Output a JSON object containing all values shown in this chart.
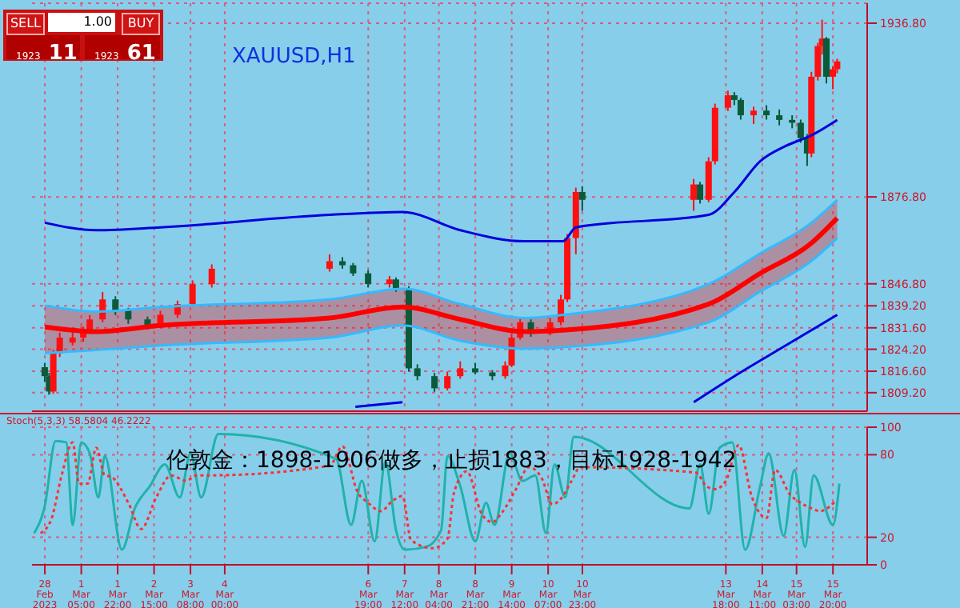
{
  "chart_data": [
    {
      "type": "candlestick",
      "title": "XAUUSD,H1",
      "annotations": [
        "SELL",
        "1.00",
        "BUY",
        "1923",
        "11",
        "1923",
        "61"
      ],
      "x": [
        "2023-02-28T12:00",
        "2023-02-28T14:00",
        "2023-02-28T16:00",
        "2023-02-28T19:00",
        "2023-03-01T01:00",
        "2023-03-01T06:00",
        "2023-03-01T09:00",
        "2023-03-01T15:00",
        "2023-03-01T21:00",
        "2023-03-02T03:00",
        "2023-03-02T12:00",
        "2023-03-02T18:00",
        "2023-03-03T02:00",
        "2023-03-03T09:00",
        "2023-03-03T18:00",
        "2023-03-06T01:00",
        "2023-03-06T07:00",
        "2023-03-06T12:00",
        "2023-03-06T19:00",
        "2023-03-07T05:00",
        "2023-03-07T08:00",
        "2023-03-07T14:00",
        "2023-03-07T18:00",
        "2023-03-08T02:00",
        "2023-03-08T08:00",
        "2023-03-08T14:00",
        "2023-03-08T21:00",
        "2023-03-09T05:00",
        "2023-03-09T11:00",
        "2023-03-09T14:00",
        "2023-03-09T18:00",
        "2023-03-09T23:00",
        "2023-03-10T08:00",
        "2023-03-10T13:00",
        "2023-03-10T16:00",
        "2023-03-10T20:00",
        "2023-03-10T23:00",
        "2023-03-13T03:00",
        "2023-03-13T06:00",
        "2023-03-13T10:00",
        "2023-03-13T13:00",
        "2023-03-13T19:00",
        "2023-03-13T22:00",
        "2023-03-14T01:00",
        "2023-03-14T07:00",
        "2023-03-14T13:00",
        "2023-03-14T19:00",
        "2023-03-15T01:00",
        "2023-03-15T05:00",
        "2023-03-15T08:00",
        "2023-03-15T10:00",
        "2023-03-15T13:00",
        "2023-03-15T15:00",
        "2023-03-15T17:00",
        "2023-03-15T20:00",
        "2023-03-15T22:00"
      ],
      "ohlc": [
        [
          1818,
          1819.5,
          1813,
          1814.9
        ],
        [
          1814.9,
          1816,
          1808.5,
          1809.6
        ],
        [
          1809.6,
          1824,
          1808.8,
          1822.8
        ],
        [
          1822.8,
          1830,
          1821.5,
          1828.2
        ],
        [
          1826.5,
          1831,
          1825.5,
          1828.2
        ],
        [
          1828.2,
          1832,
          1826.8,
          1830.8
        ],
        [
          1830.8,
          1836,
          1829.5,
          1834.5
        ],
        [
          1834.5,
          1844,
          1833.5,
          1841.4
        ],
        [
          1841.4,
          1842.5,
          1836,
          1837.7
        ],
        [
          1837.7,
          1838.5,
          1833,
          1834.5
        ],
        [
          1834.5,
          1835.5,
          1831,
          1832.4
        ],
        [
          1832.4,
          1837.5,
          1831.5,
          1836.1
        ],
        [
          1836.1,
          1841,
          1835,
          1839.8
        ],
        [
          1839.8,
          1848,
          1839,
          1846.7
        ],
        [
          1846.7,
          1853.5,
          1845.5,
          1852
        ],
        [
          1852,
          1857,
          1851,
          1854.6
        ],
        [
          1854.6,
          1856,
          1852,
          1853.2
        ],
        [
          1853.2,
          1854,
          1849.5,
          1850.4
        ],
        [
          1850.4,
          1851.5,
          1845.5,
          1846.7
        ],
        [
          1846.7,
          1849.5,
          1845.5,
          1848.3
        ],
        [
          1848.3,
          1849,
          1844,
          1845.1
        ],
        [
          1845.1,
          1846,
          1816.5,
          1817.6
        ],
        [
          1817.6,
          1819,
          1813.5,
          1814.9
        ],
        [
          1814.9,
          1816,
          1809.5,
          1810.7
        ],
        [
          1810.7,
          1816.5,
          1810,
          1814.9
        ],
        [
          1814.9,
          1820,
          1814,
          1817.6
        ],
        [
          1817.6,
          1819.5,
          1815.5,
          1816.2
        ],
        [
          1816.2,
          1817,
          1813.5,
          1814.9
        ],
        [
          1814.9,
          1820,
          1814,
          1818.6
        ],
        [
          1818.6,
          1829.5,
          1818,
          1828.2
        ],
        [
          1828.2,
          1835,
          1827.5,
          1833.5
        ],
        [
          1833.5,
          1834.5,
          1828.5,
          1829.7
        ],
        [
          1829.7,
          1835,
          1829,
          1833.5
        ],
        [
          1833.5,
          1843,
          1832.5,
          1841.4
        ],
        [
          1841.4,
          1864,
          1840.5,
          1862.6
        ],
        [
          1862.6,
          1880,
          1857,
          1878.5
        ],
        [
          1878.5,
          1880.5,
          1872,
          1875.8
        ],
        [
          1875.8,
          1883,
          1872,
          1881.1
        ],
        [
          1881.1,
          1882,
          1874.5,
          1875.8
        ],
        [
          1875.8,
          1890.5,
          1875,
          1889.1
        ],
        [
          1889.1,
          1909,
          1888,
          1907.6
        ],
        [
          1907.6,
          1913.5,
          1906.5,
          1911.9
        ],
        [
          1911.9,
          1913,
          1908.5,
          1910.3
        ],
        [
          1910.3,
          1911,
          1903.5,
          1905
        ],
        [
          1905,
          1908,
          1902,
          1906.6
        ],
        [
          1906.6,
          1908.5,
          1903.5,
          1905
        ],
        [
          1905,
          1907,
          1901.5,
          1903.4
        ],
        [
          1903.4,
          1905,
          1900.5,
          1902.4
        ],
        [
          1902.4,
          1903.5,
          1895.5,
          1897.1
        ],
        [
          1897.1,
          1898.5,
          1887.5,
          1891.8
        ],
        [
          1891.8,
          1920,
          1890.5,
          1918.3
        ],
        [
          1918.3,
          1930,
          1917,
          1928.9
        ],
        [
          1928.9,
          1938,
          1926,
          1931.5
        ],
        [
          1931.5,
          1932,
          1916,
          1918.3
        ],
        [
          1918.3,
          1922,
          1914,
          1920.9
        ],
        [
          1920.9,
          1924.5,
          1919.5,
          1923.6
        ]
      ],
      "series": [
        {
          "type": "line",
          "color": "#0000dd",
          "x": [
            "2023-02-28T12:00",
            "2023-03-01T12:00",
            "2023-03-02T18:00",
            "2023-03-06T01:00",
            "2023-03-07T11:00",
            "2023-03-08T14:00",
            "2023-03-09T20:00",
            "2023-03-10T14:00",
            "2023-03-10T20:00",
            "2023-03-13T10:00",
            "2023-03-13T22:00",
            "2023-03-14T10:00",
            "2023-03-14T22:00",
            "2023-03-15T10:00",
            "2023-03-15T22:00"
          ],
          "values": [
            1867.9,
            1865.3,
            1866.3,
            1870.6,
            1871.6,
            1865.3,
            1861.5,
            1861.5,
            1866.3,
            1870.6,
            1878.5,
            1889.1,
            1894.4,
            1898.1,
            1903.4
          ]
        },
        {
          "type": "line",
          "color": "#33bbff",
          "x": [
            "2023-02-28T12:00",
            "2023-03-01T12:00",
            "2023-03-02T18:00",
            "2023-03-06T01:00",
            "2023-03-07T11:00",
            "2023-03-08T14:00",
            "2023-03-09T20:00",
            "2023-03-10T14:00",
            "2023-03-13T10:00",
            "2023-03-14T10:00",
            "2023-03-15T10:00",
            "2023-03-15T22:00"
          ],
          "values": [
            1839.3,
            1837.2,
            1838.8,
            1841.4,
            1845.1,
            1839.8,
            1835.0,
            1836.1,
            1846.7,
            1857.3,
            1867.9,
            1875.8
          ]
        },
        {
          "type": "line",
          "color": "#ff0000",
          "x": [
            "2023-02-28T12:00",
            "2023-03-01T12:00",
            "2023-03-02T18:00",
            "2023-03-06T01:00",
            "2023-03-07T11:00",
            "2023-03-08T14:00",
            "2023-03-09T20:00",
            "2023-03-10T14:00",
            "2023-03-13T10:00",
            "2023-03-14T10:00",
            "2023-03-15T10:00",
            "2023-03-15T22:00"
          ],
          "values": [
            1831.9,
            1830.3,
            1832.4,
            1835.0,
            1838.8,
            1834.5,
            1830.3,
            1830.8,
            1839.8,
            1850.4,
            1860.9,
            1869.5
          ],
          "lower": [
            1822.8,
            1823.9,
            1825.5,
            1828.2,
            1832.4,
            1827.1,
            1824.4,
            1824.9,
            1833.5,
            1844.1,
            1854.7,
            1862.6
          ],
          "upper": [
            1839.3,
            1837.2,
            1838.8,
            1841.4,
            1845.1,
            1839.8,
            1835.0,
            1836.1,
            1846.7,
            1857.3,
            1867.9,
            1875.8
          ]
        },
        {
          "type": "line",
          "color": "#33bbff",
          "x": [
            "2023-02-28T12:00",
            "2023-03-01T12:00",
            "2023-03-02T18:00",
            "2023-03-06T01:00",
            "2023-03-07T11:00",
            "2023-03-08T14:00",
            "2023-03-09T20:00",
            "2023-03-10T14:00",
            "2023-03-13T10:00",
            "2023-03-14T10:00",
            "2023-03-15T10:00",
            "2023-03-15T22:00"
          ],
          "values": [
            1822.8,
            1823.9,
            1825.5,
            1828.2,
            1832.4,
            1827.1,
            1824.4,
            1824.9,
            1833.5,
            1844.1,
            1854.7,
            1862.6
          ]
        },
        {
          "type": "line",
          "color": "#0000dd",
          "x": [
            "2023-03-06T13:00",
            "2023-03-07T11:00",
            "2023-03-09T05:00",
            "2023-03-13T03:00",
            "2023-03-13T22:00",
            "2023-03-14T22:00",
            "2023-03-15T22:00"
          ],
          "values": [
            1804.3,
            1805.9,
            null,
            1805.9,
            1814.9,
            1825.5,
            1836.1
          ]
        }
      ],
      "xlim": [
        "2023-02-28T06:00",
        "2023-03-16T12:00"
      ],
      "xticks": [
        "2023-02-28T12:00",
        "2023-03-01T05:00",
        "2023-03-01T22:00",
        "2023-03-02T15:00",
        "2023-03-03T08:00",
        "2023-03-04T00:00",
        "2023-03-06T19:00",
        "2023-03-07T12:00",
        "2023-03-08T04:00",
        "2023-03-08T21:00",
        "2023-03-09T14:00",
        "2023-03-10T07:00",
        "2023-03-10T23:00",
        "2023-03-13T18:00",
        "2023-03-14T11:00",
        "2023-03-15T03:00",
        "2023-03-15T20:00"
      ],
      "ylim": [
        1802.8,
        1943.7
      ],
      "yticks": [
        {
          "value": 1809.2,
          "label": "1809.20"
        },
        {
          "value": 1816.6,
          "label": "1816.60"
        },
        {
          "value": 1824.2,
          "label": "1824.20"
        },
        {
          "value": 1831.6,
          "label": "1831.60"
        },
        {
          "value": 1839.2,
          "label": "1839.20"
        },
        {
          "value": 1846.8,
          "label": "1846.80"
        },
        {
          "value": 1876.8,
          "label": "1876.80"
        },
        {
          "value": 1936.8,
          "label": "1936.80"
        }
      ],
      "tick_labels": "y",
      "grid": true
    },
    {
      "type": "line",
      "title": "Stoch(5,3,3) 58.5804 46.2222",
      "annotations": [
        "伦敦金：1898-1906做多，止损1883，目标1928-1942"
      ],
      "series": [
        {
          "color": "#20b2aa",
          "x": [
            "2023-02-28T07:00",
            "2023-02-28T12:00",
            "2023-02-28T17:00",
            "2023-02-28T22:00",
            "2023-03-01T01:00",
            "2023-03-01T05:00",
            "2023-03-01T09:00",
            "2023-03-01T13:00",
            "2023-03-01T16:00",
            "2023-03-02T00:00",
            "2023-03-02T06:00",
            "2023-03-02T13:00",
            "2023-03-02T20:00",
            "2023-03-03T03:00",
            "2023-03-03T08:00",
            "2023-03-03T13:00",
            "2023-03-03T21:00",
            "2023-03-06T04:00",
            "2023-03-06T11:00",
            "2023-03-06T16:00",
            "2023-03-06T22:00",
            "2023-03-07T03:00",
            "2023-03-07T08:00",
            "2023-03-07T12:00",
            "2023-03-07T22:00",
            "2023-03-08T05:00",
            "2023-03-08T08:00",
            "2023-03-08T14:00",
            "2023-03-08T21:00",
            "2023-03-09T02:00",
            "2023-03-09T06:00",
            "2023-03-09T13:00",
            "2023-03-09T19:00",
            "2023-03-10T01:00",
            "2023-03-10T06:00",
            "2023-03-10T10:00",
            "2023-03-10T15:00",
            "2023-03-10T19:00",
            "2023-03-13T01:00",
            "2023-03-13T06:00",
            "2023-03-13T10:00",
            "2023-03-13T15:00",
            "2023-03-13T21:00",
            "2023-03-14T03:00",
            "2023-03-14T10:00",
            "2023-03-14T14:00",
            "2023-03-14T21:00",
            "2023-03-15T02:00",
            "2023-03-15T07:00",
            "2023-03-15T11:00",
            "2023-03-15T20:00",
            "2023-03-15T23:00"
          ],
          "values": [
            23,
            43,
            90,
            89,
            29,
            89,
            81,
            49,
            79,
            11,
            41,
            57,
            73,
            49,
            81,
            49,
            95,
            77,
            29,
            61,
            17,
            75,
            25,
            11,
            13,
            25,
            79,
            57,
            17,
            45,
            29,
            81,
            61,
            65,
            23,
            73,
            49,
            93,
            41,
            73,
            37,
            85,
            89,
            11,
            57,
            81,
            21,
            69,
            13,
            65,
            29,
            59
          ]
        },
        {
          "color": "#ff3030",
          "line_style": "dotted",
          "x": [
            "2023-02-28T10:00",
            "2023-02-28T15:00",
            "2023-02-28T20:00",
            "2023-03-01T01:00",
            "2023-03-01T04:00",
            "2023-03-01T08:00",
            "2023-03-01T12:00",
            "2023-03-01T16:00",
            "2023-03-01T19:00",
            "2023-03-02T03:00",
            "2023-03-02T09:00",
            "2023-03-02T16:00",
            "2023-03-02T23:00",
            "2023-03-03T06:00",
            "2023-03-03T11:00",
            "2023-03-03T16:00",
            "2023-03-06T01:00",
            "2023-03-06T07:00",
            "2023-03-06T14:00",
            "2023-03-06T19:00",
            "2023-03-07T01:00",
            "2023-03-07T06:00",
            "2023-03-07T11:00",
            "2023-03-07T15:00",
            "2023-03-08T01:00",
            "2023-03-08T08:00",
            "2023-03-08T11:00",
            "2023-03-08T17:00",
            "2023-03-09T00:00",
            "2023-03-09T05:00",
            "2023-03-09T09:00",
            "2023-03-09T16:00",
            "2023-03-09T22:00",
            "2023-03-10T04:00",
            "2023-03-10T09:00",
            "2023-03-10T13:00",
            "2023-03-10T18:00",
            "2023-03-10T22:00",
            "2023-03-13T04:00",
            "2023-03-13T09:00",
            "2023-03-13T13:00",
            "2023-03-13T18:00",
            "2023-03-14T00:00",
            "2023-03-14T06:00",
            "2023-03-14T13:00",
            "2023-03-14T17:00",
            "2023-03-15T00:00",
            "2023-03-15T05:00",
            "2023-03-15T10:00",
            "2023-03-15T14:00",
            "2023-03-15T21:00"
          ],
          "values": [
            23,
            33,
            66,
            89,
            59,
            59,
            85,
            65,
            64,
            45,
            26,
            49,
            65,
            61,
            65,
            65,
            72,
            86,
            53,
            45,
            39,
            46,
            50,
            18,
            12,
            19,
            52,
            68,
            37,
            31,
            37,
            55,
            71,
            63,
            44,
            48,
            61,
            71,
            67,
            57,
            55,
            61,
            87,
            50,
            34,
            69,
            51,
            45,
            41,
            39,
            46
          ]
        }
      ],
      "xlim": [
        "2023-02-28T06:00",
        "2023-03-16T12:00"
      ],
      "xticks": [
        {
          "value": "2023-02-28T12:00",
          "label": "28 Feb 2023"
        },
        {
          "value": "2023-03-01T05:00",
          "label": "1 Mar 05:00"
        },
        {
          "value": "2023-03-01T22:00",
          "label": "1 Mar 22:00"
        },
        {
          "value": "2023-03-02T15:00",
          "label": "2 Mar 15:00"
        },
        {
          "value": "2023-03-03T08:00",
          "label": "3 Mar 08:00"
        },
        {
          "value": "2023-03-04T00:00",
          "label": "4 Mar 00:00"
        },
        {
          "value": "2023-03-06T19:00",
          "label": "6 Mar 19:00"
        },
        {
          "value": "2023-03-07T12:00",
          "label": "7 Mar 12:00"
        },
        {
          "value": "2023-03-08T04:00",
          "label": "8 Mar 04:00"
        },
        {
          "value": "2023-03-08T21:00",
          "label": "8 Mar 21:00"
        },
        {
          "value": "2023-03-09T14:00",
          "label": "9 Mar 14:00"
        },
        {
          "value": "2023-03-10T07:00",
          "label": "10 Mar 07:00"
        },
        {
          "value": "2023-03-10T23:00",
          "label": "10 Mar 23:00"
        },
        {
          "value": "2023-03-13T18:00",
          "label": "13 Mar 18:00"
        },
        {
          "value": "2023-03-14T11:00",
          "label": "14 Mar 11:00"
        },
        {
          "value": "2023-03-15T03:00",
          "label": "15 Mar 03:00"
        },
        {
          "value": "2023-03-15T20:00",
          "label": "15 Mar 20:00"
        }
      ],
      "ylim": [
        0,
        100
      ],
      "yticks": [
        0,
        20,
        80,
        100
      ],
      "grid": true
    }
  ]
}
